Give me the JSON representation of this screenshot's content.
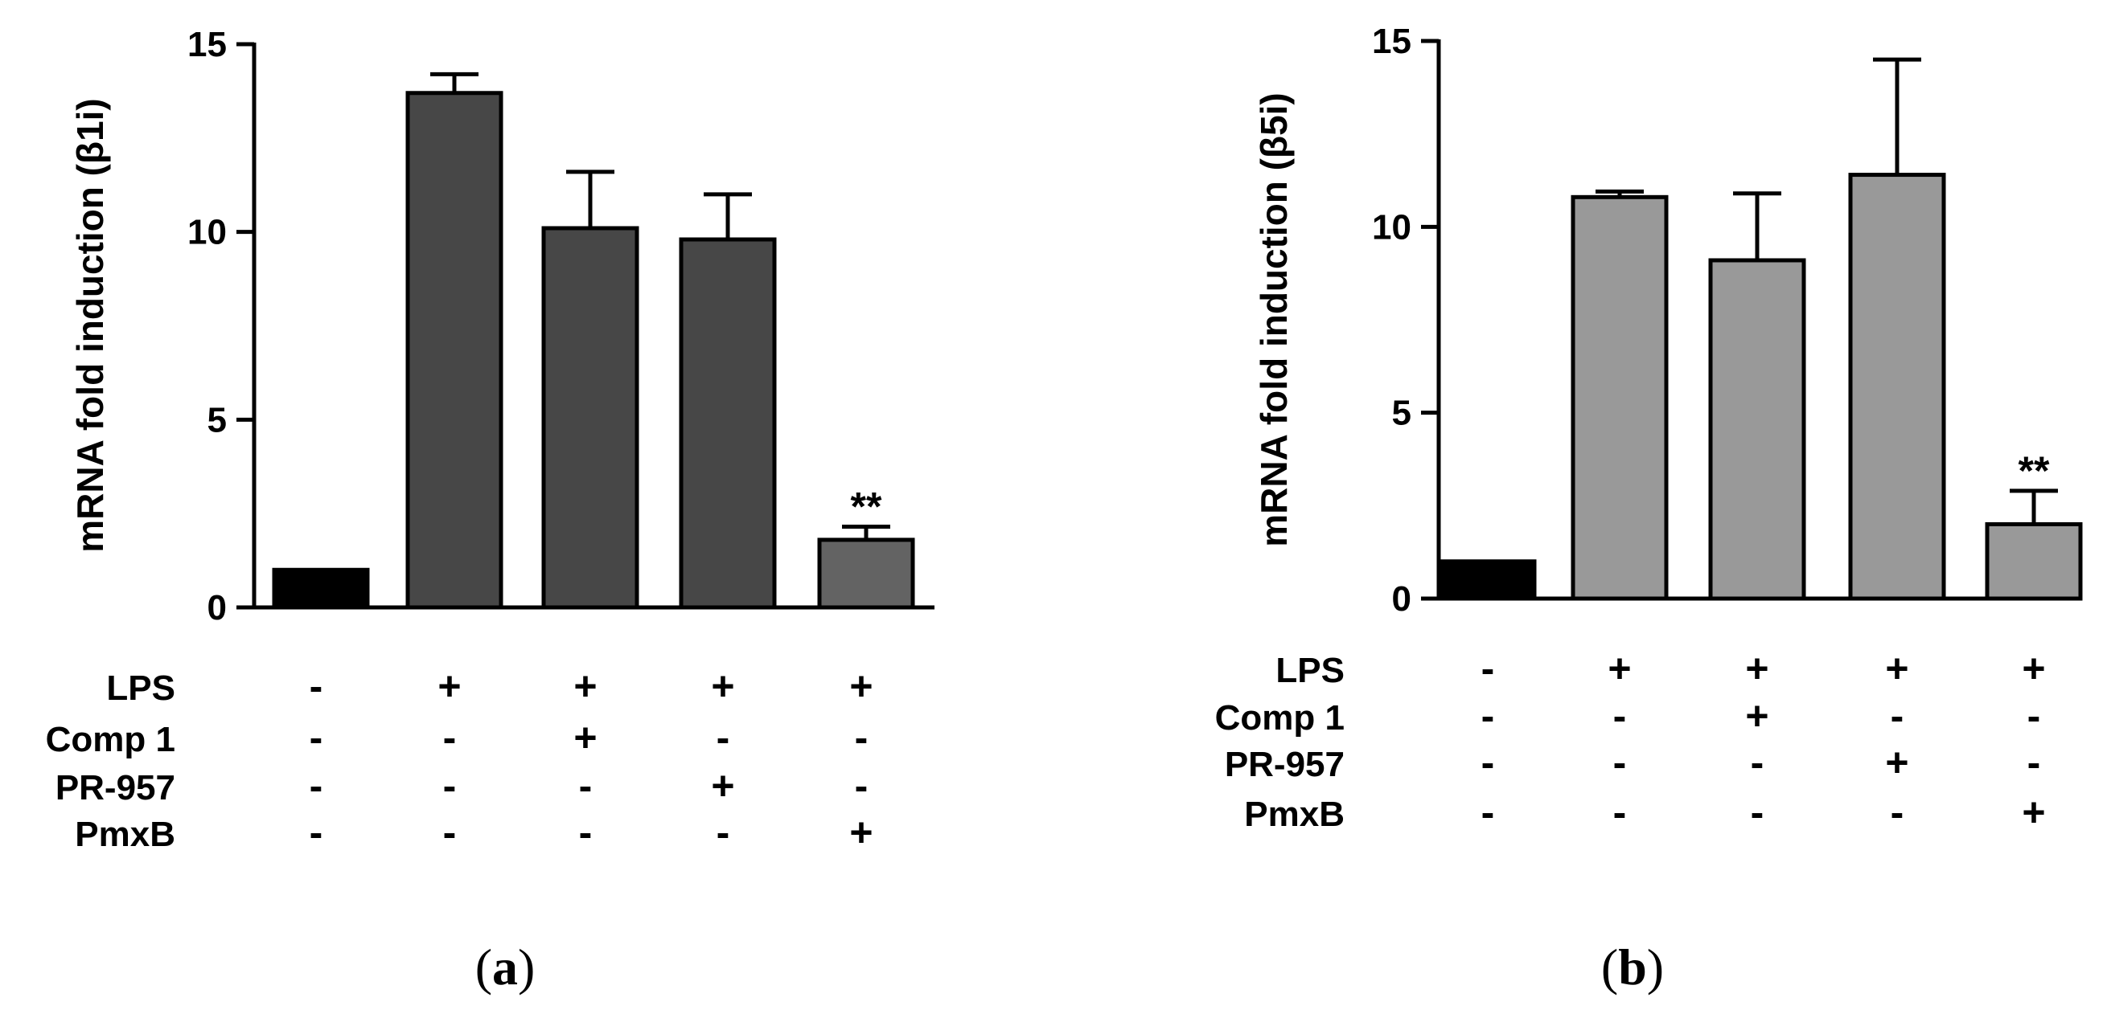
{
  "panel_labels": [
    {
      "open": "(",
      "letter": "a",
      "close": ")"
    },
    {
      "open": "(",
      "letter": "b",
      "close": ")"
    }
  ],
  "colors": {
    "control": "#000000",
    "panel_a_bar": "#474747",
    "panel_a_pmxb": "#636363",
    "panel_b_bar": "#999999",
    "axis": "#000000"
  },
  "chart_data": [
    {
      "type": "bar",
      "ylabel": "mRNA fold induction (β1i)",
      "ylim": [
        0,
        15
      ],
      "yticks": [
        0,
        5,
        10,
        15
      ],
      "values": [
        1.0,
        13.7,
        10.1,
        9.8,
        1.8
      ],
      "errors": [
        0,
        0.5,
        1.5,
        1.2,
        0.35
      ],
      "annotations": [
        "",
        "",
        "",
        "",
        "**"
      ],
      "treatments": [
        {
          "name": "LPS",
          "signs": [
            "-",
            "+",
            "+",
            "+",
            "+"
          ]
        },
        {
          "name": "Comp 1",
          "signs": [
            "-",
            "-",
            "+",
            "-",
            "-"
          ]
        },
        {
          "name": "PR-957",
          "signs": [
            "-",
            "-",
            "-",
            "+",
            "-"
          ]
        },
        {
          "name": "PmxB",
          "signs": [
            "-",
            "-",
            "-",
            "-",
            "+"
          ]
        }
      ]
    },
    {
      "type": "bar",
      "ylabel": "mRNA fold induction (β5i)",
      "ylim": [
        0,
        15
      ],
      "yticks": [
        0,
        5,
        10,
        15
      ],
      "values": [
        1.0,
        10.8,
        9.1,
        11.4,
        2.0
      ],
      "errors": [
        0,
        0.15,
        1.8,
        3.1,
        0.9
      ],
      "annotations": [
        "",
        "",
        "",
        "",
        "**"
      ],
      "treatments": [
        {
          "name": "LPS",
          "signs": [
            "-",
            "+",
            "+",
            "+",
            "+"
          ]
        },
        {
          "name": "Comp 1",
          "signs": [
            "-",
            "-",
            "+",
            "-",
            "-"
          ]
        },
        {
          "name": "PR-957",
          "signs": [
            "-",
            "-",
            "-",
            "+",
            "-"
          ]
        },
        {
          "name": "PmxB",
          "signs": [
            "-",
            "-",
            "-",
            "-",
            "+"
          ]
        }
      ]
    }
  ]
}
